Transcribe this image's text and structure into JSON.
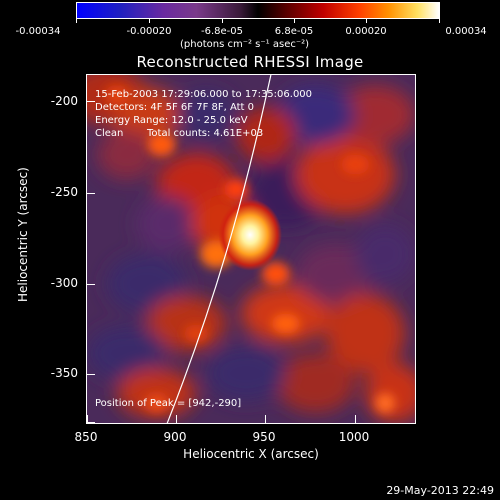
{
  "colorbar": {
    "ticks": [
      "-0.00034",
      "-0.00020",
      "-6.8e-05",
      "6.8e-05",
      "0.00020",
      "0.00034"
    ],
    "units_label": "(photons cm⁻² s⁻¹ asec⁻²)",
    "range": [
      -0.00034,
      0.00034
    ]
  },
  "chart_data": {
    "type": "heatmap",
    "title": "Reconstructed RHESSI Image",
    "xlabel": "Heliocentric X (arcsec)",
    "ylabel": "Heliocentric Y (arcsec)",
    "xlim": [
      850,
      1035
    ],
    "ylim": [
      -375,
      -190
    ],
    "x_ticks": [
      "850",
      "900",
      "950",
      "1000"
    ],
    "y_ticks": [
      "-200",
      "-250",
      "-300",
      "-350"
    ],
    "annotations": {
      "time_range": "15-Feb-2003 17:29:06.000 to 17:35:06.000",
      "detectors": "Detectors: 4F 5F 6F 7F 8F, Att 0",
      "energy": "Energy Range: 12.0 - 25.0 keV",
      "method": "Clean",
      "counts": "Total counts: 4.61E+03",
      "peak": "Position of Peak = [942,-290]"
    },
    "peak": {
      "x": 942,
      "y": -290
    },
    "colormap": "rainbow-to-hot",
    "limb_curve": true
  },
  "timestamp": "29-May-2013 22:49"
}
